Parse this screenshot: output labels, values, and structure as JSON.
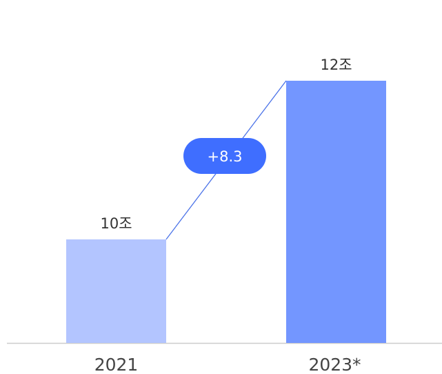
{
  "chart_data": {
    "type": "bar",
    "categories": [
      "2021",
      "2023*"
    ],
    "values": [
      10,
      12
    ],
    "value_labels": [
      "10조",
      "12조"
    ],
    "bar_colors": [
      "#b3c5ff",
      "#7396ff"
    ],
    "ylim": [
      0,
      12
    ],
    "grid": false,
    "annotation": {
      "text": "+8.3",
      "color": "#3f6eff",
      "text_color": "#ffffff"
    },
    "connector_color": "#4a72e8",
    "axis_color": "#cccccc"
  }
}
